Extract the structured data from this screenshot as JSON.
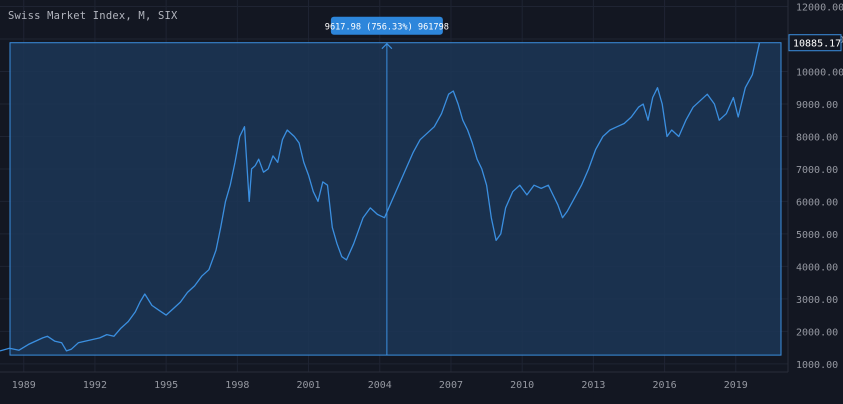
{
  "chart_data": {
    "type": "line",
    "title": "Swiss Market Index, M, SIX",
    "x_tick_labels": [
      "1989",
      "1992",
      "1995",
      "1998",
      "2001",
      "2004",
      "2007",
      "2010",
      "2013",
      "2016",
      "2019"
    ],
    "x_ticks": [
      1989,
      1992,
      1995,
      1998,
      2001,
      2004,
      2007,
      2010,
      2013,
      2016,
      2019
    ],
    "xlim": [
      1988.0,
      2021.2
    ],
    "ylim": [
      750,
      12200
    ],
    "y_ticks": [
      1000,
      2000,
      3000,
      4000,
      5000,
      6000,
      7000,
      8000,
      9000,
      10000,
      11000,
      12000
    ],
    "y_tick_labels": [
      "1000.00",
      "2000.00",
      "3000.00",
      "4000.00",
      "5000.00",
      "6000.00",
      "7000.00",
      "8000.00",
      "9000.00",
      "10000.00",
      "11000.00",
      "12000.00"
    ],
    "series": [
      {
        "name": "Swiss Market Index",
        "color": "#3b8fe0",
        "x": [
          1988.0,
          1988.4,
          1988.8,
          1989.2,
          1989.5,
          1989.8,
          1990.0,
          1990.3,
          1990.6,
          1990.8,
          1991.0,
          1991.3,
          1991.6,
          1991.9,
          1992.2,
          1992.5,
          1992.8,
          1993.1,
          1993.4,
          1993.7,
          1993.9,
          1994.1,
          1994.4,
          1994.7,
          1995.0,
          1995.3,
          1995.6,
          1995.9,
          1996.2,
          1996.5,
          1996.8,
          1997.1,
          1997.3,
          1997.5,
          1997.7,
          1997.9,
          1998.1,
          1998.3,
          1998.5,
          1998.6,
          1998.75,
          1998.9,
          1999.1,
          1999.3,
          1999.5,
          1999.7,
          1999.9,
          2000.1,
          2000.4,
          2000.6,
          2000.8,
          2001.0,
          2001.2,
          2001.4,
          2001.6,
          2001.8,
          2002.0,
          2002.2,
          2002.4,
          2002.6,
          2002.9,
          2003.1,
          2003.3,
          2003.6,
          2003.9,
          2004.2,
          2004.5,
          2004.8,
          2005.1,
          2005.4,
          2005.7,
          2006.0,
          2006.3,
          2006.6,
          2006.9,
          2007.1,
          2007.3,
          2007.5,
          2007.7,
          2007.9,
          2008.1,
          2008.3,
          2008.5,
          2008.7,
          2008.9,
          2009.1,
          2009.3,
          2009.6,
          2009.9,
          2010.2,
          2010.5,
          2010.8,
          2011.1,
          2011.3,
          2011.5,
          2011.7,
          2011.9,
          2012.2,
          2012.5,
          2012.8,
          2013.1,
          2013.4,
          2013.7,
          2014.0,
          2014.3,
          2014.6,
          2014.9,
          2015.1,
          2015.3,
          2015.5,
          2015.7,
          2015.9,
          2016.1,
          2016.3,
          2016.6,
          2016.9,
          2017.2,
          2017.5,
          2017.8,
          2018.1,
          2018.3,
          2018.6,
          2018.9,
          2019.1,
          2019.4,
          2019.7,
          2020.0
        ],
        "values": [
          1400,
          1480,
          1420,
          1600,
          1700,
          1800,
          1850,
          1700,
          1650,
          1400,
          1450,
          1650,
          1700,
          1750,
          1800,
          1900,
          1850,
          2100,
          2300,
          2600,
          2900,
          3150,
          2800,
          2650,
          2500,
          2700,
          2900,
          3200,
          3400,
          3700,
          3900,
          4500,
          5200,
          6000,
          6500,
          7200,
          8000,
          8300,
          6000,
          7000,
          7100,
          7300,
          6900,
          7000,
          7400,
          7200,
          7900,
          8200,
          8000,
          7800,
          7200,
          6800,
          6300,
          6000,
          6600,
          6500,
          5200,
          4700,
          4300,
          4200,
          4700,
          5100,
          5500,
          5800,
          5600,
          5500,
          6000,
          6500,
          7000,
          7500,
          7900,
          8100,
          8300,
          8700,
          9300,
          9400,
          9000,
          8500,
          8200,
          7800,
          7300,
          7000,
          6500,
          5500,
          4800,
          5000,
          5800,
          6300,
          6500,
          6200,
          6500,
          6400,
          6500,
          6200,
          5900,
          5500,
          5700,
          6100,
          6500,
          7000,
          7600,
          8000,
          8200,
          8300,
          8400,
          8600,
          8900,
          9000,
          8500,
          9200,
          9500,
          9000,
          8000,
          8200,
          8000,
          8500,
          8900,
          9100,
          9300,
          9000,
          8500,
          8700,
          9200,
          8600,
          9500,
          9900,
          10885
        ]
      }
    ],
    "last_value_label": "10885.17",
    "measure_label": "9617.98 (756.33%) 961798",
    "measure_x": 2004.3,
    "colors": {
      "background": "#131722",
      "line": "#3b8fe0",
      "range_fill": "#1c3656",
      "range_border": "#3b8fe0",
      "grid": "#1f2433",
      "axis_text": "#9598a1",
      "label_bg": "#2d86db"
    }
  }
}
